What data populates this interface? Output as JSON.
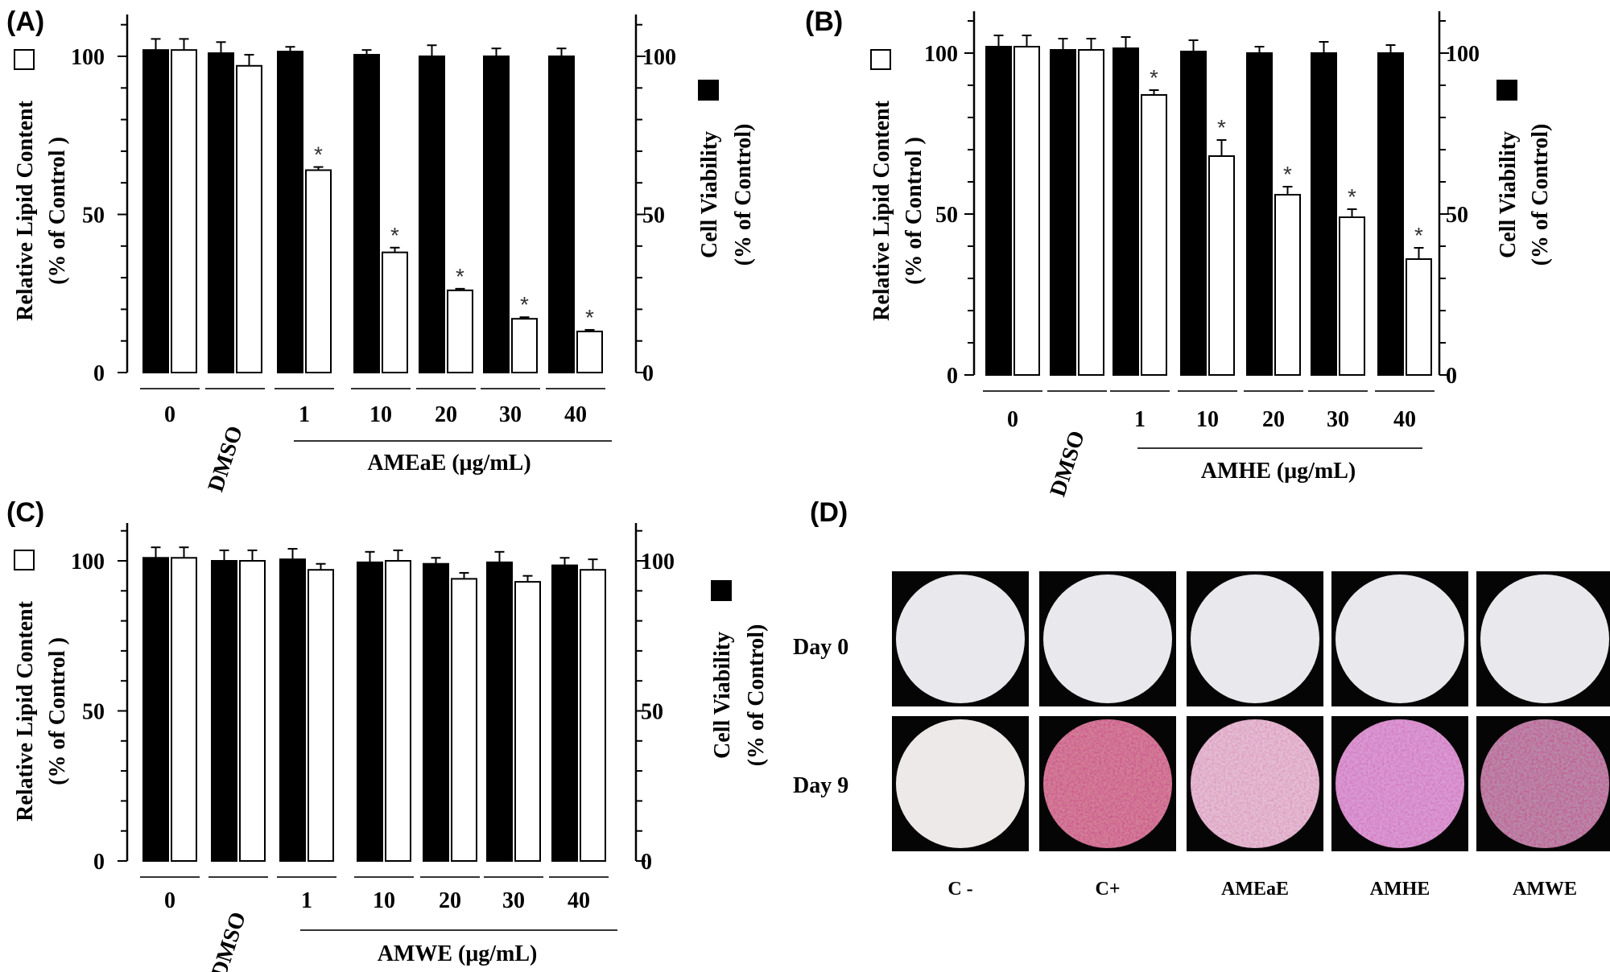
{
  "chart_data": [
    {
      "type": "bar",
      "panel": "(A)",
      "categories": [
        "0",
        "DMSO",
        "1",
        "10",
        "20",
        "30",
        "40"
      ],
      "group_label": "AMEaE (μg/mL)",
      "ylabel_left": [
        "Relative Lipid Content",
        "(% of Control )"
      ],
      "ylabel_right": [
        "Cell Viability",
        "(% of Control)"
      ],
      "yticks": [
        "0",
        "50",
        "100"
      ],
      "ylim": [
        0,
        100
      ],
      "series": [
        {
          "name": "Cell Viability",
          "fill": "#000000",
          "values": [
            102,
            101,
            101.5,
            100.5,
            100,
            100,
            100
          ],
          "errors": [
            3.5,
            3.5,
            1.5,
            1.5,
            3.5,
            2.5,
            2.5
          ],
          "significant": [
            false,
            false,
            false,
            false,
            false,
            false,
            false
          ]
        },
        {
          "name": "Relative Lipid Content",
          "fill": "#ffffff",
          "values": [
            102,
            97,
            64,
            38,
            26,
            17,
            13
          ],
          "errors": [
            3.5,
            3.5,
            1,
            1.5,
            0.5,
            0.5,
            0.5
          ],
          "significant": [
            false,
            false,
            true,
            true,
            true,
            true,
            true
          ]
        }
      ]
    },
    {
      "type": "bar",
      "panel": "(B)",
      "categories": [
        "0",
        "DMSO",
        "1",
        "10",
        "20",
        "30",
        "40"
      ],
      "group_label": "AMHE (μg/mL)",
      "ylabel_left": [
        "Relative Lipid Content",
        "(% of Control )"
      ],
      "ylabel_right": [
        "Cell Viability",
        "(% of Control)"
      ],
      "yticks": [
        "0",
        "50",
        "100"
      ],
      "ylim": [
        0,
        100
      ],
      "series": [
        {
          "name": "Cell Viability",
          "fill": "#000000",
          "values": [
            102,
            101,
            101.5,
            100.5,
            100,
            100,
            100
          ],
          "errors": [
            3.5,
            3.5,
            3.5,
            3.5,
            2,
            3.5,
            2.5
          ],
          "significant": [
            false,
            false,
            false,
            false,
            false,
            false,
            false
          ]
        },
        {
          "name": "Relative Lipid Content",
          "fill": "#ffffff",
          "values": [
            102,
            101,
            87,
            68,
            56,
            49,
            36
          ],
          "errors": [
            3.5,
            3.5,
            1.5,
            5,
            2.5,
            2.5,
            3.5
          ],
          "significant": [
            false,
            false,
            true,
            true,
            true,
            true,
            true
          ]
        }
      ]
    },
    {
      "type": "bar",
      "panel": "(C)",
      "categories": [
        "0",
        "DMSO",
        "1",
        "10",
        "20",
        "30",
        "40"
      ],
      "group_label": "AMWE (μg/mL)",
      "ylabel_left": [
        "Relative Lipid Content",
        "(% of Control )"
      ],
      "ylabel_right": [
        "Cell Viability",
        "(% of Control)"
      ],
      "yticks": [
        "0",
        "50",
        "100"
      ],
      "ylim": [
        0,
        100
      ],
      "series": [
        {
          "name": "Cell Viability",
          "fill": "#000000",
          "values": [
            101,
            100,
            100.5,
            99.5,
            99,
            99.5,
            98.5
          ],
          "errors": [
            3.5,
            3.5,
            3.5,
            3.5,
            2,
            3.5,
            2.5
          ],
          "significant": [
            false,
            false,
            false,
            false,
            false,
            false,
            false
          ]
        },
        {
          "name": "Relative Lipid Content",
          "fill": "#ffffff",
          "values": [
            101,
            100,
            97,
            100,
            94,
            93,
            97
          ],
          "errors": [
            3.5,
            3.5,
            2,
            3.5,
            2,
            2,
            3.5
          ],
          "significant": [
            false,
            false,
            false,
            false,
            false,
            false,
            false
          ]
        }
      ]
    }
  ],
  "panel_d": {
    "label": "(D)",
    "rows": [
      "Day 0",
      "Day 9"
    ],
    "columns": [
      "C -",
      "C+",
      "AMEaE",
      "AMHE",
      "AMWE"
    ],
    "day9_tints": [
      "#ece9e8",
      "#d27f96",
      "#e4bdd3",
      "#d99ad6",
      "#b88aa8"
    ],
    "day0_tint": "#e9e8ec"
  }
}
